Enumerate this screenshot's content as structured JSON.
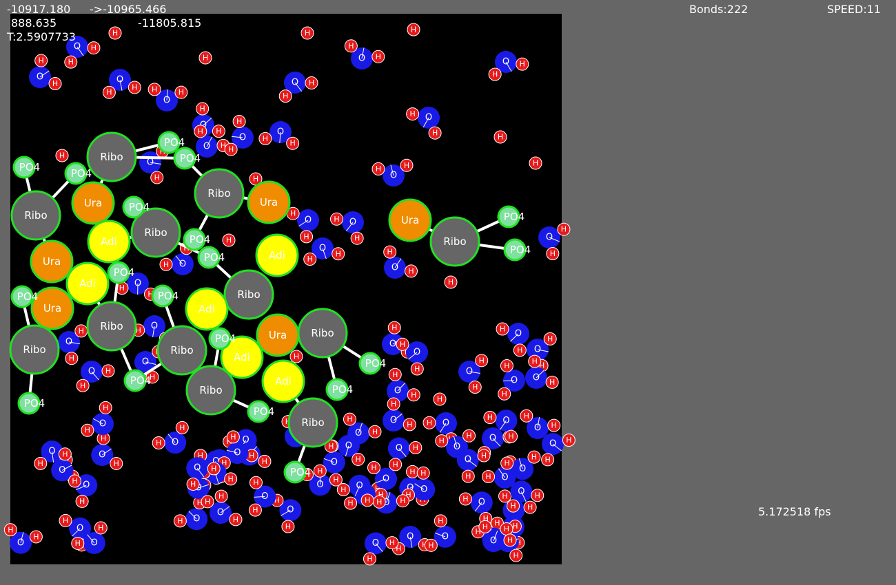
{
  "hud": {
    "energy": "-10917.180",
    "target": "->-10965.466",
    "kinetic": "888.635",
    "potential": "-11805.815",
    "temperature": "T:2.5907733",
    "bonds": "Bonds:222",
    "speed": "SPEED:11",
    "fps": "5.172518 fps"
  },
  "molecules": [
    "Ribo",
    "Ribo",
    "Ribo",
    "Ribo",
    "Ribo",
    "Ribo",
    "Ribo",
    "Ribo",
    "Ribo",
    "Ribo",
    "Ribo",
    "Ribo",
    "Ura",
    "Ura",
    "Ura",
    "Ura",
    "Ura",
    "Ura",
    "Adi",
    "Adi",
    "Adi",
    "Adi",
    "Adi",
    "Adi",
    "PO4",
    "PO4",
    "PO4",
    "PO4",
    "PO4",
    "PO4",
    "PO4",
    "PO4",
    "PO4",
    "PO4",
    "PO4",
    "PO4",
    "PO4",
    "PO4",
    "PO4",
    "PO4",
    "PO4",
    "PO4",
    "PO4"
  ],
  "waters": [
    [
      "O",
      "H",
      "H"
    ],
    [
      "O",
      "H",
      "H"
    ],
    [
      "O",
      "H",
      "H"
    ],
    [
      "O",
      "H",
      "H"
    ],
    [
      "O",
      "H",
      "H"
    ],
    [
      "O",
      "H",
      "H"
    ],
    [
      "O",
      "H",
      "H"
    ],
    [
      "O",
      "H",
      "H"
    ],
    [
      "O",
      "H",
      "H"
    ],
    [
      "O",
      "H",
      "H"
    ],
    [
      "O",
      "H",
      "H"
    ],
    [
      "O",
      "H",
      "H"
    ],
    [
      "O",
      "H",
      "H"
    ],
    [
      "O",
      "H",
      "H"
    ],
    [
      "O",
      "H",
      "H"
    ],
    [
      "O",
      "H",
      "H"
    ],
    [
      "O",
      "H",
      "H"
    ],
    [
      "O",
      "H",
      "H"
    ],
    [
      "O",
      "H",
      "H"
    ],
    [
      "O",
      "H",
      "H"
    ],
    [
      "O",
      "H",
      "H"
    ],
    [
      "O",
      "H",
      "H"
    ],
    [
      "O",
      "H",
      "H"
    ],
    [
      "O",
      "H",
      "H"
    ],
    [
      "O",
      "H",
      "H"
    ],
    [
      "O",
      "H",
      "H"
    ],
    [
      "O",
      "H",
      "H"
    ],
    [
      "O",
      "H",
      "H"
    ],
    [
      "O",
      "H",
      "H"
    ],
    [
      "O",
      "H",
      "H"
    ],
    [
      "O",
      "H",
      "H"
    ],
    [
      "O",
      "H",
      "H"
    ],
    [
      "O",
      "H",
      "H"
    ],
    [
      "O",
      "H",
      "H"
    ],
    [
      "O",
      "H",
      "H"
    ],
    [
      "O",
      "H",
      "H"
    ],
    [
      "O",
      "H",
      "H"
    ],
    [
      "O",
      "H",
      "H"
    ],
    [
      "O",
      "H",
      "H"
    ],
    [
      "O",
      "H",
      "H"
    ],
    [
      "O",
      "H",
      "H"
    ],
    [
      "O",
      "H",
      "H"
    ],
    [
      "O",
      "H",
      "H"
    ],
    [
      "O",
      "H",
      "H"
    ],
    [
      "O",
      "H",
      "H"
    ],
    [
      "O",
      "H",
      "H"
    ],
    [
      "O",
      "H",
      "H"
    ],
    [
      "O",
      "H",
      "H"
    ],
    [
      "O",
      "H",
      "H"
    ],
    [
      "O",
      "H",
      "H"
    ],
    [
      "O",
      "H",
      "H"
    ],
    [
      "O",
      "H",
      "H"
    ],
    [
      "O",
      "H",
      "H"
    ],
    [
      "O",
      "H",
      "H"
    ],
    [
      "O",
      "H",
      "H"
    ],
    [
      "O",
      "H",
      "H"
    ],
    [
      "O",
      "H",
      "H"
    ],
    [
      "O",
      "H",
      "H"
    ],
    [
      "O",
      "H",
      "H"
    ],
    [
      "O",
      "H",
      "H"
    ],
    [
      "O",
      "H",
      "H"
    ],
    [
      "O",
      "H",
      "H"
    ],
    [
      "O",
      "H",
      "H"
    ],
    [
      "O",
      "H",
      "H"
    ],
    [
      "O",
      "H",
      "H"
    ],
    [
      "O",
      "H",
      "H"
    ],
    [
      "O",
      "H",
      "H"
    ],
    [
      "O",
      "H",
      "H"
    ],
    [
      "O",
      "H",
      "H"
    ],
    [
      "O",
      "H",
      "H"
    ],
    [
      "O",
      "H",
      "H"
    ],
    [
      "O",
      "H",
      "H"
    ],
    [
      "O",
      "H",
      "H"
    ],
    [
      "O",
      "H",
      "H"
    ],
    [
      "O",
      "H",
      "H"
    ],
    [
      "O",
      "H",
      "H"
    ],
    [
      "O",
      "H",
      "H"
    ],
    [
      "O",
      "H",
      "H"
    ],
    [
      "O",
      "H",
      "H"
    ],
    [
      "O",
      "H",
      "H"
    ],
    [
      "O",
      "H",
      "H"
    ],
    [
      "O",
      "H",
      "H"
    ],
    [
      "O",
      "H",
      "H"
    ],
    [
      "O",
      "H",
      "H"
    ],
    [
      "O",
      "H",
      "H"
    ],
    [
      "O",
      "H",
      "H"
    ]
  ],
  "ions": [
    "H",
    "H",
    "H",
    "H",
    "H",
    "H",
    "H",
    "H",
    "H",
    "H",
    "H",
    "H"
  ]
}
